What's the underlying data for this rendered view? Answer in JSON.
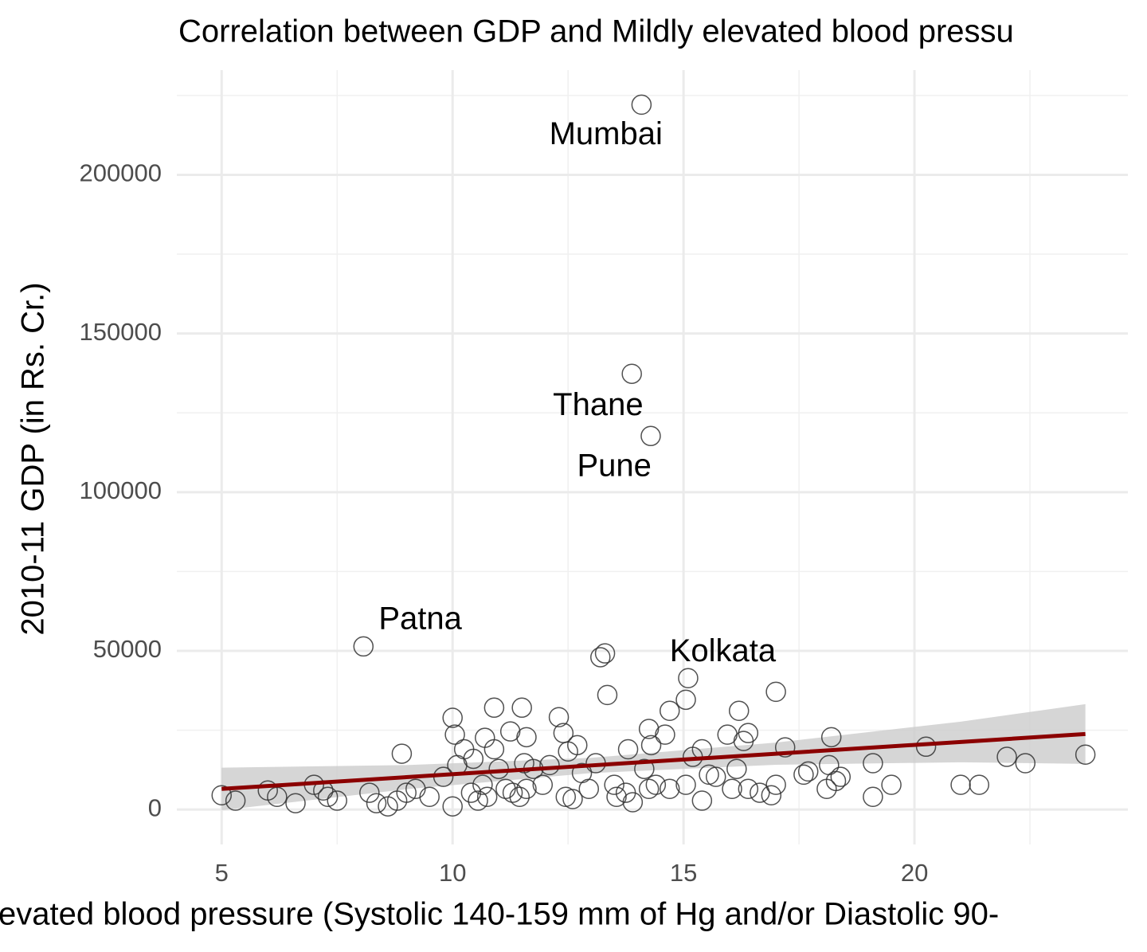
{
  "chart_data": {
    "type": "scatter",
    "title": "Correlation between GDP and Mildly elevated blood pressu",
    "x_label": "evated blood pressure (Systolic 140-159 mm of Hg and/or Diastolic 90-",
    "y_label": "2010-11 GDP (in Rs. Cr.)",
    "xlim": [
      4.03,
      24.62
    ],
    "ylim": [
      -11000,
      233000
    ],
    "xticks": [
      5,
      10,
      15,
      20
    ],
    "yticks": [
      0,
      50000,
      100000,
      150000,
      200000
    ],
    "x_minor_ticks": [
      7.5,
      12.5,
      17.5,
      22.5
    ],
    "y_minor_ticks": [
      25000,
      75000,
      125000,
      175000,
      225000
    ],
    "grid": true,
    "color": "#333333",
    "x": [
      14.09,
      13.88,
      14.29,
      8.07,
      15.1,
      5.0,
      5.3,
      6.0,
      6.2,
      6.6,
      7.0,
      7.2,
      7.3,
      7.5,
      8.2,
      8.35,
      8.6,
      8.8,
      8.9,
      9.0,
      9.2,
      9.5,
      9.8,
      10.0,
      10.05,
      10.0,
      10.1,
      10.25,
      10.4,
      10.45,
      10.55,
      10.65,
      10.7,
      10.75,
      10.9,
      10.9,
      11.0,
      11.15,
      11.25,
      11.3,
      11.45,
      11.5,
      11.55,
      11.6,
      11.6,
      11.75,
      11.95,
      12.1,
      12.3,
      12.4,
      12.45,
      12.5,
      12.6,
      12.7,
      12.8,
      12.95,
      13.1,
      13.2,
      13.3,
      13.35,
      13.5,
      13.55,
      13.75,
      13.8,
      13.9,
      14.15,
      14.25,
      14.3,
      14.25,
      14.4,
      14.6,
      14.7,
      14.7,
      15.05,
      15.05,
      15.2,
      15.4,
      15.4,
      15.55,
      15.7,
      15.95,
      16.05,
      16.15,
      16.2,
      16.3,
      16.4,
      16.4,
      16.65,
      16.9,
      17.0,
      17.0,
      17.2,
      17.6,
      17.7,
      18.1,
      18.15,
      18.2,
      18.3,
      18.4,
      19.1,
      19.1,
      19.5,
      20.25,
      21.0,
      21.4,
      22.0,
      22.4,
      23.7
    ],
    "y": [
      222100,
      137300,
      117700,
      51400,
      41400,
      4500,
      2800,
      6000,
      4000,
      2000,
      7800,
      6000,
      4000,
      2800,
      5300,
      2000,
      1000,
      2800,
      17600,
      5300,
      6500,
      4000,
      10300,
      28900,
      23600,
      1000,
      14000,
      19000,
      5300,
      16000,
      2800,
      7800,
      22600,
      4000,
      32100,
      19000,
      12800,
      6500,
      24600,
      5300,
      4000,
      32100,
      14600,
      22800,
      6500,
      12800,
      7800,
      14000,
      29100,
      24100,
      4000,
      18300,
      3300,
      20300,
      11500,
      6500,
      14600,
      48000,
      49200,
      36100,
      7800,
      4000,
      5300,
      19000,
      2300,
      12800,
      25400,
      20300,
      6500,
      7800,
      23600,
      31100,
      6500,
      7800,
      34600,
      16600,
      2800,
      19000,
      11000,
      10300,
      23600,
      6500,
      12800,
      31100,
      21600,
      24100,
      6500,
      5300,
      4500,
      37100,
      7800,
      19600,
      11000,
      12000,
      6500,
      14000,
      22800,
      9000,
      10300,
      4000,
      14600,
      7800,
      19800,
      7800,
      7800,
      16600,
      14600,
      17300
    ],
    "annotations": [
      {
        "text": "Mumbai",
        "x": 13.32,
        "y": 212300
      },
      {
        "text": "Thane",
        "x": 13.15,
        "y": 127000
      },
      {
        "text": "Pune",
        "x": 13.5,
        "y": 107800
      },
      {
        "text": "Patna",
        "x": 9.3,
        "y": 59600
      },
      {
        "text": "Kolkata",
        "x": 15.85,
        "y": 49400
      }
    ],
    "fit": {
      "color": "#8b0000",
      "band_color": "#cccccc",
      "x": [
        5,
        9,
        13,
        17,
        21,
        23.7
      ],
      "y": [
        6500,
        10200,
        13900,
        17600,
        21300,
        23800
      ],
      "lower": [
        -200,
        6400,
        11500,
        14100,
        14900,
        14400
      ],
      "upper": [
        13200,
        14000,
        16300,
        21100,
        27700,
        33200
      ]
    }
  }
}
